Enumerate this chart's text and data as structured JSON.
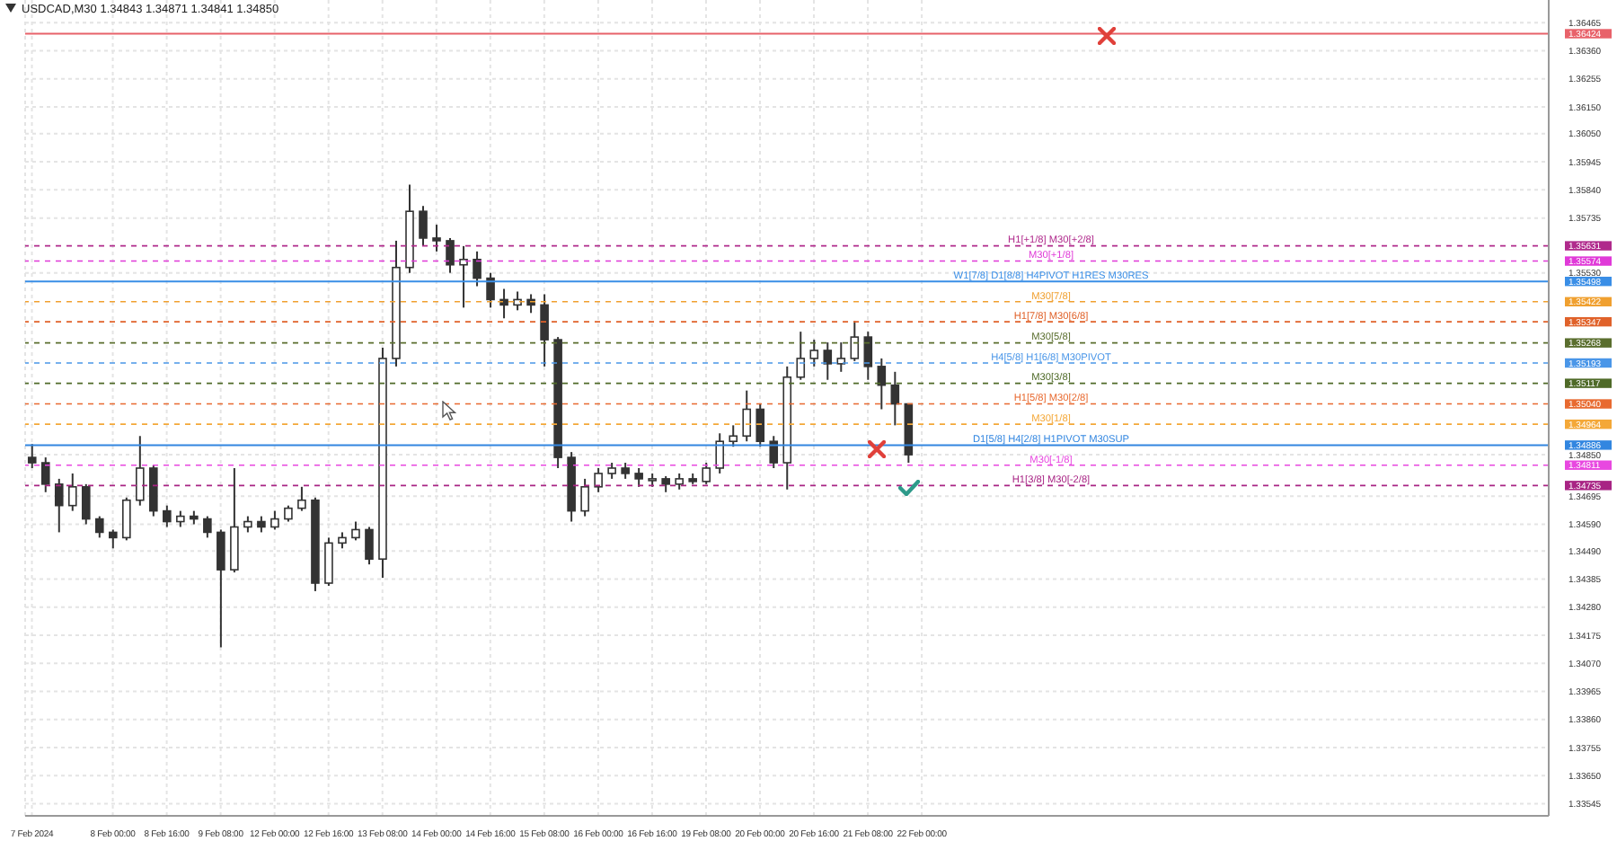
{
  "chart_data": {
    "type": "candlestick",
    "title": "USDCAD,M30  1.34843 1.34871 1.34841 1.34850",
    "categories": [
      "7 Feb 2024",
      null,
      null,
      null,
      null,
      null,
      "8 Feb 00:00",
      null,
      null,
      null,
      "8 Feb 16:00",
      null,
      null,
      null,
      "9 Feb 08:00",
      null,
      null,
      null,
      "12 Feb 00:00",
      null,
      null,
      null,
      "12 Feb 16:00",
      null,
      null,
      null,
      "13 Feb 08:00",
      null,
      null,
      null,
      "14 Feb 00:00",
      null,
      null,
      null,
      "14 Feb 16:00",
      null,
      null,
      null,
      "15 Feb 08:00",
      null,
      null,
      null,
      "16 Feb 00:00",
      null,
      null,
      null,
      "16 Feb 16:00",
      null,
      null,
      null,
      "19 Feb 08:00",
      null,
      null,
      null,
      "20 Feb 00:00",
      null,
      null,
      null,
      "20 Feb 16:00",
      null,
      null,
      null,
      "21 Feb 08:00",
      null,
      null,
      null,
      "22 Feb 00:00",
      null,
      null,
      null,
      null,
      null,
      null,
      null,
      null,
      null,
      null,
      null,
      null,
      null,
      null,
      null,
      null,
      null,
      null,
      null,
      null,
      null,
      null,
      null,
      null,
      null,
      null,
      null,
      null,
      null,
      null,
      null,
      null,
      null,
      null,
      null,
      null,
      null,
      null,
      null,
      null,
      null,
      null,
      null,
      null,
      null,
      null
    ],
    "series": [
      {
        "color": "#333333",
        "ohlc": [
          [
            1.3484,
            1.3489,
            1.348,
            1.3482
          ],
          [
            1.3482,
            1.3484,
            1.3471,
            1.3474
          ],
          [
            1.3474,
            1.3476,
            1.3456,
            1.3466
          ],
          [
            1.3466,
            1.3478,
            1.3464,
            1.3473
          ],
          [
            1.3473,
            1.3474,
            1.3459,
            1.3461
          ],
          [
            1.3461,
            1.3462,
            1.3454,
            1.3456
          ],
          [
            1.3456,
            1.3457,
            1.345,
            1.3454
          ],
          [
            1.3454,
            1.3469,
            1.3453,
            1.3468
          ],
          [
            1.3468,
            1.3492,
            1.3466,
            1.348
          ],
          [
            1.348,
            1.3481,
            1.3462,
            1.3464
          ],
          [
            1.3464,
            1.3466,
            1.3458,
            1.346
          ],
          [
            1.346,
            1.3464,
            1.3458,
            1.3462
          ],
          [
            1.3462,
            1.3464,
            1.3459,
            1.3461
          ],
          [
            1.3461,
            1.3462,
            1.3454,
            1.3456
          ],
          [
            1.3456,
            1.3457,
            1.3413,
            1.3442
          ],
          [
            1.3442,
            1.348,
            1.3441,
            1.3458
          ],
          [
            1.3458,
            1.3462,
            1.3456,
            1.346
          ],
          [
            1.346,
            1.3462,
            1.3456,
            1.3458
          ],
          [
            1.3458,
            1.3464,
            1.3457,
            1.3461
          ],
          [
            1.3461,
            1.3466,
            1.346,
            1.3465
          ],
          [
            1.3465,
            1.3473,
            1.3464,
            1.3468
          ],
          [
            1.3468,
            1.3469,
            1.3434,
            1.3437
          ],
          [
            1.3437,
            1.3454,
            1.3436,
            1.3452
          ],
          [
            1.3452,
            1.3456,
            1.345,
            1.3454
          ],
          [
            1.3454,
            1.346,
            1.3453,
            1.3457
          ],
          [
            1.3457,
            1.3458,
            1.3444,
            1.3446
          ],
          [
            1.3446,
            1.3525,
            1.3439,
            1.3521
          ],
          [
            1.3521,
            1.3565,
            1.3518,
            1.3555
          ],
          [
            1.3555,
            1.3586,
            1.3553,
            1.3576
          ],
          [
            1.3576,
            1.3578,
            1.3563,
            1.3566
          ],
          [
            1.3566,
            1.3571,
            1.3561,
            1.3565
          ],
          [
            1.3565,
            1.3566,
            1.3553,
            1.3556
          ],
          [
            1.3556,
            1.3563,
            1.354,
            1.3558
          ],
          [
            1.3558,
            1.3561,
            1.3548,
            1.3551
          ],
          [
            1.3551,
            1.3553,
            1.354,
            1.3543
          ],
          [
            1.3543,
            1.3547,
            1.3536,
            1.3541
          ],
          [
            1.3541,
            1.3546,
            1.3539,
            1.3543
          ],
          [
            1.3543,
            1.3545,
            1.3538,
            1.3541
          ],
          [
            1.3541,
            1.3545,
            1.3518,
            1.3528
          ],
          [
            1.3528,
            1.3529,
            1.348,
            1.3484
          ],
          [
            1.3484,
            1.3486,
            1.346,
            1.3464
          ],
          [
            1.3464,
            1.3476,
            1.3462,
            1.3473
          ],
          [
            1.3473,
            1.348,
            1.3471,
            1.3478
          ],
          [
            1.3478,
            1.3482,
            1.3476,
            1.348
          ],
          [
            1.348,
            1.3482,
            1.3476,
            1.3478
          ],
          [
            1.3478,
            1.348,
            1.3473,
            1.3476
          ],
          [
            1.3476,
            1.3478,
            1.3473,
            1.3476
          ],
          [
            1.3476,
            1.3477,
            1.3471,
            1.3474
          ],
          [
            1.3474,
            1.3478,
            1.3472,
            1.3476
          ],
          [
            1.3476,
            1.3478,
            1.3474,
            1.3475
          ],
          [
            1.3475,
            1.3482,
            1.3474,
            1.348
          ],
          [
            1.348,
            1.3493,
            1.3478,
            1.349
          ],
          [
            1.349,
            1.3496,
            1.3488,
            1.3492
          ],
          [
            1.3492,
            1.3509,
            1.349,
            1.3502
          ],
          [
            1.3502,
            1.3504,
            1.3488,
            1.349
          ],
          [
            1.349,
            1.3492,
            1.348,
            1.3482
          ],
          [
            1.3482,
            1.3518,
            1.3472,
            1.3514
          ],
          [
            1.3514,
            1.3531,
            1.3513,
            1.3521
          ],
          [
            1.3521,
            1.3528,
            1.3518,
            1.3524
          ],
          [
            1.3524,
            1.3527,
            1.3513,
            1.3519
          ],
          [
            1.3519,
            1.3527,
            1.3516,
            1.3521
          ],
          [
            1.3521,
            1.3535,
            1.352,
            1.3529
          ],
          [
            1.3529,
            1.3531,
            1.3513,
            1.3518
          ],
          [
            1.3518,
            1.3521,
            1.3502,
            1.3511
          ],
          [
            1.3511,
            1.3516,
            1.3496,
            1.3504
          ],
          [
            1.3504,
            1.3504,
            1.3482,
            1.3485
          ],
          null,
          null,
          null,
          null,
          null,
          null,
          null,
          null,
          null,
          null,
          null,
          null,
          null,
          null,
          null,
          null,
          null,
          null,
          null,
          null,
          null,
          null,
          null,
          null,
          null,
          null,
          null,
          null,
          null,
          null,
          null,
          null,
          null,
          null,
          null,
          null,
          null,
          null,
          null,
          null,
          null,
          null,
          null,
          null,
          null,
          null,
          null
        ]
      }
    ],
    "ylim": [
      1.335,
      1.3655
    ],
    "yticks": [
      1.36465,
      1.36424,
      {
        "value": 1.3636,
        "label": "1.36360"
      },
      1.36255,
      {
        "value": 1.3615,
        "label": "1.36150"
      },
      {
        "value": 1.3605,
        "label": "1.36050"
      },
      1.35945,
      {
        "value": 1.3584,
        "label": "1.35840"
      },
      1.35735,
      1.35631,
      1.35574,
      {
        "value": 1.3553,
        "label": "1.35530"
      },
      1.35498,
      1.35422,
      1.35347,
      1.35268,
      1.35193,
      1.35117,
      {
        "value": 1.3504,
        "label": "1.35040"
      },
      1.34964,
      1.34886,
      {
        "value": 1.3485,
        "label": "1.34850"
      },
      1.34811,
      1.34735,
      1.34695,
      {
        "value": 1.3459,
        "label": "1.34590"
      },
      {
        "value": 1.3449,
        "label": "1.34490"
      },
      1.34385,
      {
        "value": 1.3428,
        "label": "1.34280"
      },
      1.34175,
      {
        "value": 1.3407,
        "label": "1.34070"
      },
      1.33965,
      {
        "value": 1.3386,
        "label": "1.33860"
      },
      1.33755,
      {
        "value": 1.3365,
        "label": "1.33650"
      },
      1.33545
    ],
    "grid": true,
    "ref_lines": [
      {
        "axis": "y",
        "value": 1.36424,
        "label": null,
        "color": "#e8626a",
        "line_style": "solid"
      },
      {
        "axis": "y",
        "value": 1.35631,
        "label": "H1[+1/8] M30[+2/8]",
        "color": "#b02a8c",
        "line_style": "dashed"
      },
      {
        "axis": "y",
        "value": 1.35574,
        "label": "M30[+1/8]",
        "color": "#e03ad8",
        "line_style": "dashed"
      },
      {
        "axis": "y",
        "value": 1.35498,
        "label": "W1[7/8] D1[8/8] H4PIVOT H1RES M30RES",
        "color": "#3a8ee6",
        "line_style": "solid"
      },
      {
        "axis": "y",
        "value": 1.35422,
        "label": "M30[7/8]",
        "color": "#f0a030",
        "line_style": "dashed"
      },
      {
        "axis": "y",
        "value": 1.35347,
        "label": "H1[7/8] M30[6/8]",
        "color": "#e0622a",
        "line_style": "dashed"
      },
      {
        "axis": "y",
        "value": 1.35268,
        "label": "M30[5/8]",
        "color": "#5a6e2e",
        "line_style": "dashed"
      },
      {
        "axis": "y",
        "value": 1.35193,
        "label": "H4[5/8] H1[6/8] M30PIVOT",
        "color": "#4a96e8",
        "line_style": "dashed"
      },
      {
        "axis": "y",
        "value": 1.35117,
        "label": "M30[3/8]",
        "color": "#4f6a28",
        "line_style": "dashed"
      },
      {
        "axis": "y",
        "value": 1.3504,
        "label": "H1[5/8] M30[2/8]",
        "color": "#e86a30",
        "line_style": "dashed"
      },
      {
        "axis": "y",
        "value": 1.34964,
        "label": "M30[1/8]",
        "color": "#f4a838",
        "line_style": "dashed"
      },
      {
        "axis": "y",
        "value": 1.34886,
        "label": "D1[5/8] H4[2/8] H1PIVOT M30SUP",
        "color": "#3286e0",
        "line_style": "solid"
      },
      {
        "axis": "y",
        "value": 1.34811,
        "label": "M30[-1/8]",
        "color": "#e848e0",
        "line_style": "dashed"
      },
      {
        "axis": "y",
        "value": 1.34735,
        "label": "H1[3/8] M30[-2/8]",
        "color": "#a82484",
        "line_style": "dashed"
      }
    ]
  }
}
